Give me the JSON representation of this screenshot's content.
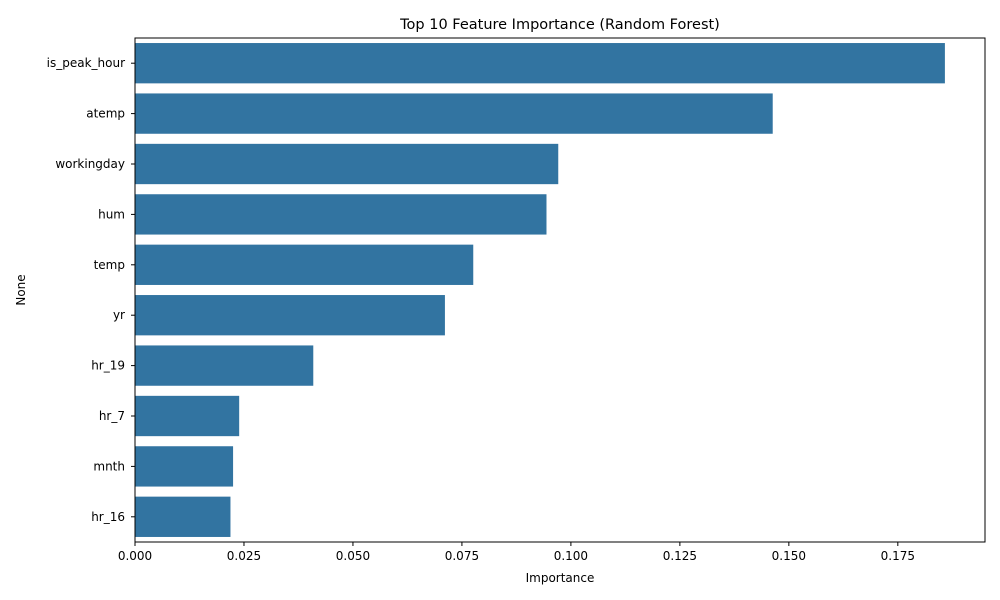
{
  "chart_data": {
    "type": "bar",
    "orientation": "horizontal",
    "title": "Top 10 Feature Importance (Random Forest)",
    "xlabel": "Importance",
    "ylabel": "None",
    "categories": [
      "is_peak_hour",
      "atemp",
      "workingday",
      "hum",
      "temp",
      "yr",
      "hr_19",
      "hr_7",
      "mnth",
      "hr_16"
    ],
    "values": [
      0.1858,
      0.1463,
      0.0971,
      0.0944,
      0.0776,
      0.0711,
      0.0409,
      0.0239,
      0.0225,
      0.0219
    ],
    "xlim": [
      0,
      0.195
    ],
    "xticks": [
      0.0,
      0.025,
      0.05,
      0.075,
      0.1,
      0.125,
      0.15,
      0.175
    ],
    "xtick_labels": [
      "0.000",
      "0.025",
      "0.050",
      "0.075",
      "0.100",
      "0.125",
      "0.150",
      "0.175"
    ],
    "grid": false,
    "bar_color": "#3274a1"
  }
}
